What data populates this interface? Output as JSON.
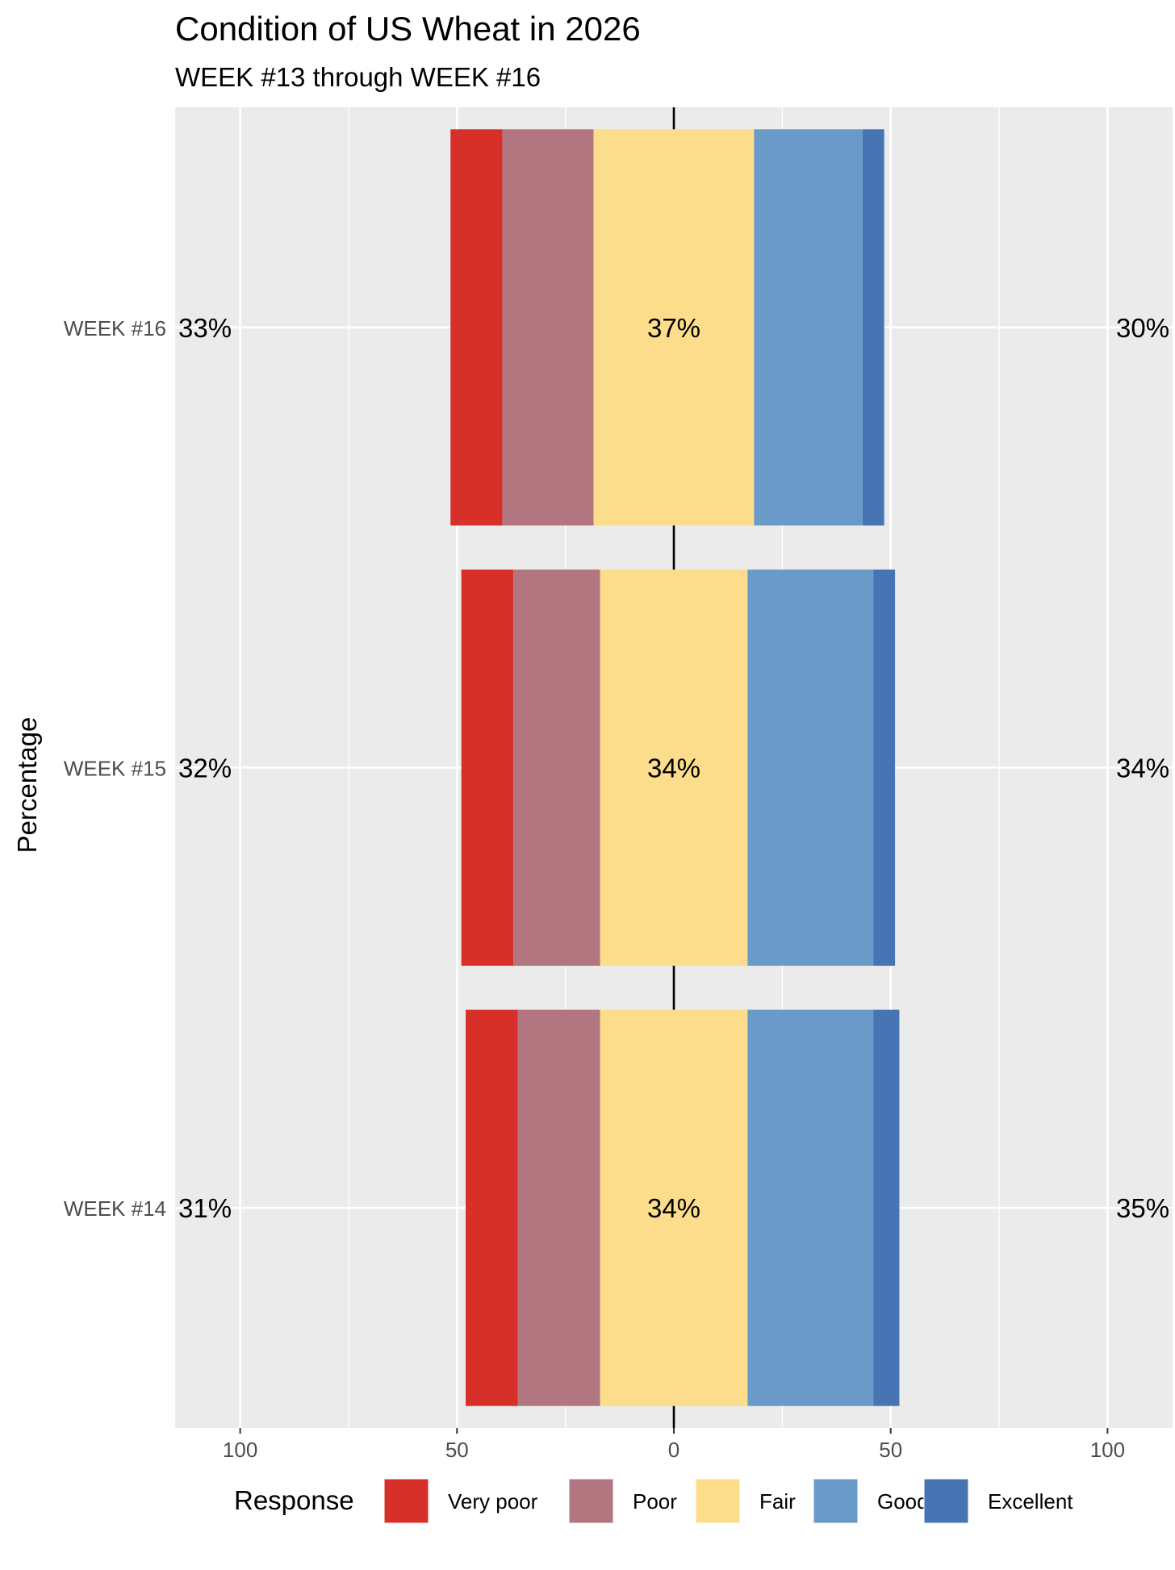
{
  "chart_data": {
    "type": "bar",
    "title": "Condition of US Wheat in 2026",
    "subtitle": "WEEK #13 through WEEK #16",
    "ylabel": "Percentage",
    "xlabel": "",
    "xlim": [
      -115,
      115
    ],
    "x_ticks": [
      -100,
      -50,
      0,
      50,
      100
    ],
    "x_tick_labels": [
      "100",
      "50",
      "0",
      "50",
      "100"
    ],
    "grid": true,
    "legend_title": "Response",
    "legend_position": "bottom",
    "categories": [
      "WEEK #16",
      "WEEK #15",
      "WEEK #14"
    ],
    "series": [
      {
        "name": "Very poor",
        "color": "#D7302A",
        "values": [
          12,
          12,
          12
        ]
      },
      {
        "name": "Poor",
        "color": "#B27680",
        "values": [
          21,
          20,
          19
        ]
      },
      {
        "name": "Fair",
        "color": "#FCDD8B",
        "values": [
          37,
          34,
          34
        ]
      },
      {
        "name": "Good",
        "color": "#6A9AC8",
        "values": [
          25,
          29,
          29
        ]
      },
      {
        "name": "Excellent",
        "color": "#4775B4",
        "values": [
          5,
          5,
          6
        ]
      }
    ],
    "left_labels": [
      "33%",
      "32%",
      "31%"
    ],
    "center_labels": [
      "37%",
      "34%",
      "34%"
    ],
    "right_labels": [
      "30%",
      "34%",
      "35%"
    ]
  }
}
